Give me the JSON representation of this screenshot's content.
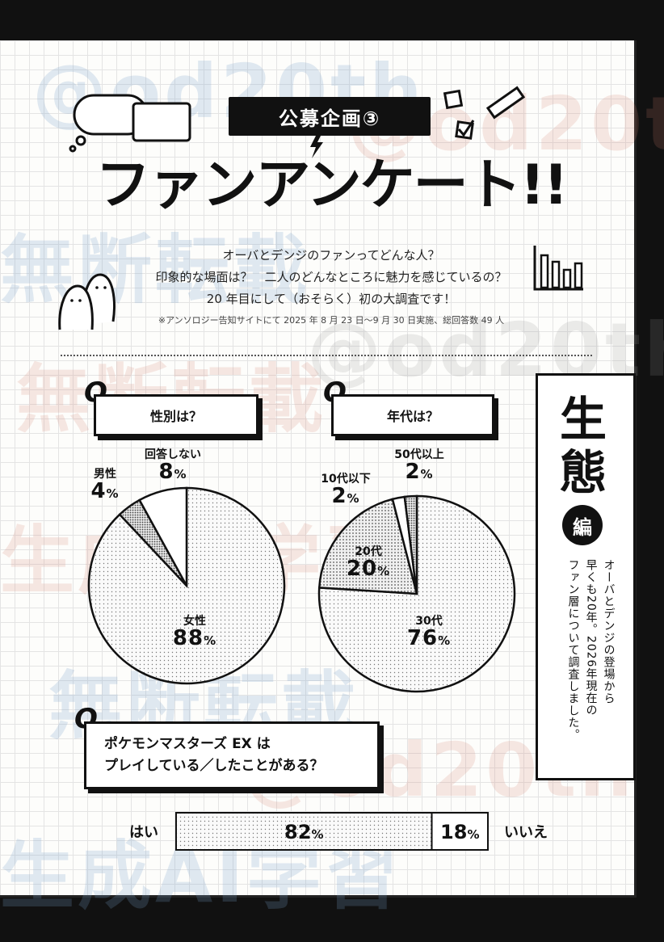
{
  "header": {
    "badge": "公募企画③",
    "title": "ファンアンケート!!"
  },
  "intro": {
    "line1": "オーバとデンジのファンってどんな人？",
    "line2": "印象的な場面は？　二人のどんなところに魅力を感じているの？",
    "line3": "20 年目にして（おそらく）初の大調査です！",
    "note": "※アンソロジー告知サイトにて 2025 年 8 月 23 日〜9 月 30 日実施、総回答数 49 人"
  },
  "sidebar": {
    "big1": "生",
    "big2": "態",
    "circle": "編",
    "desc": [
      "オーバとデンジの登場から",
      "早くも20年。2026年現在の",
      "ファン層について調査しました。"
    ]
  },
  "q_marker": "Q.",
  "watermark": [
    "@od20th",
    "無断転載",
    "禁",
    "生成AI学習"
  ],
  "percent_unit": "%",
  "colors": {
    "ink": "#111111",
    "paper": "#fdfdfb",
    "grid": "#e4e4e4"
  },
  "chart_data": [
    {
      "type": "pie",
      "title": "性別は？",
      "slices": [
        {
          "label": "女性",
          "value": 88
        },
        {
          "label": "男性",
          "value": 4
        },
        {
          "label": "回答しない",
          "value": 8
        }
      ]
    },
    {
      "type": "pie",
      "title": "年代は？",
      "slices": [
        {
          "label": "30代",
          "value": 76
        },
        {
          "label": "20代",
          "value": 20
        },
        {
          "label": "10代以下",
          "value": 2
        },
        {
          "label": "50代以上",
          "value": 2
        }
      ]
    },
    {
      "type": "bar",
      "title": "ポケモンマスターズ EX は\nプレイしている／したことがある？",
      "categories": [
        "はい",
        "いいえ"
      ],
      "values": [
        82,
        18
      ]
    }
  ]
}
